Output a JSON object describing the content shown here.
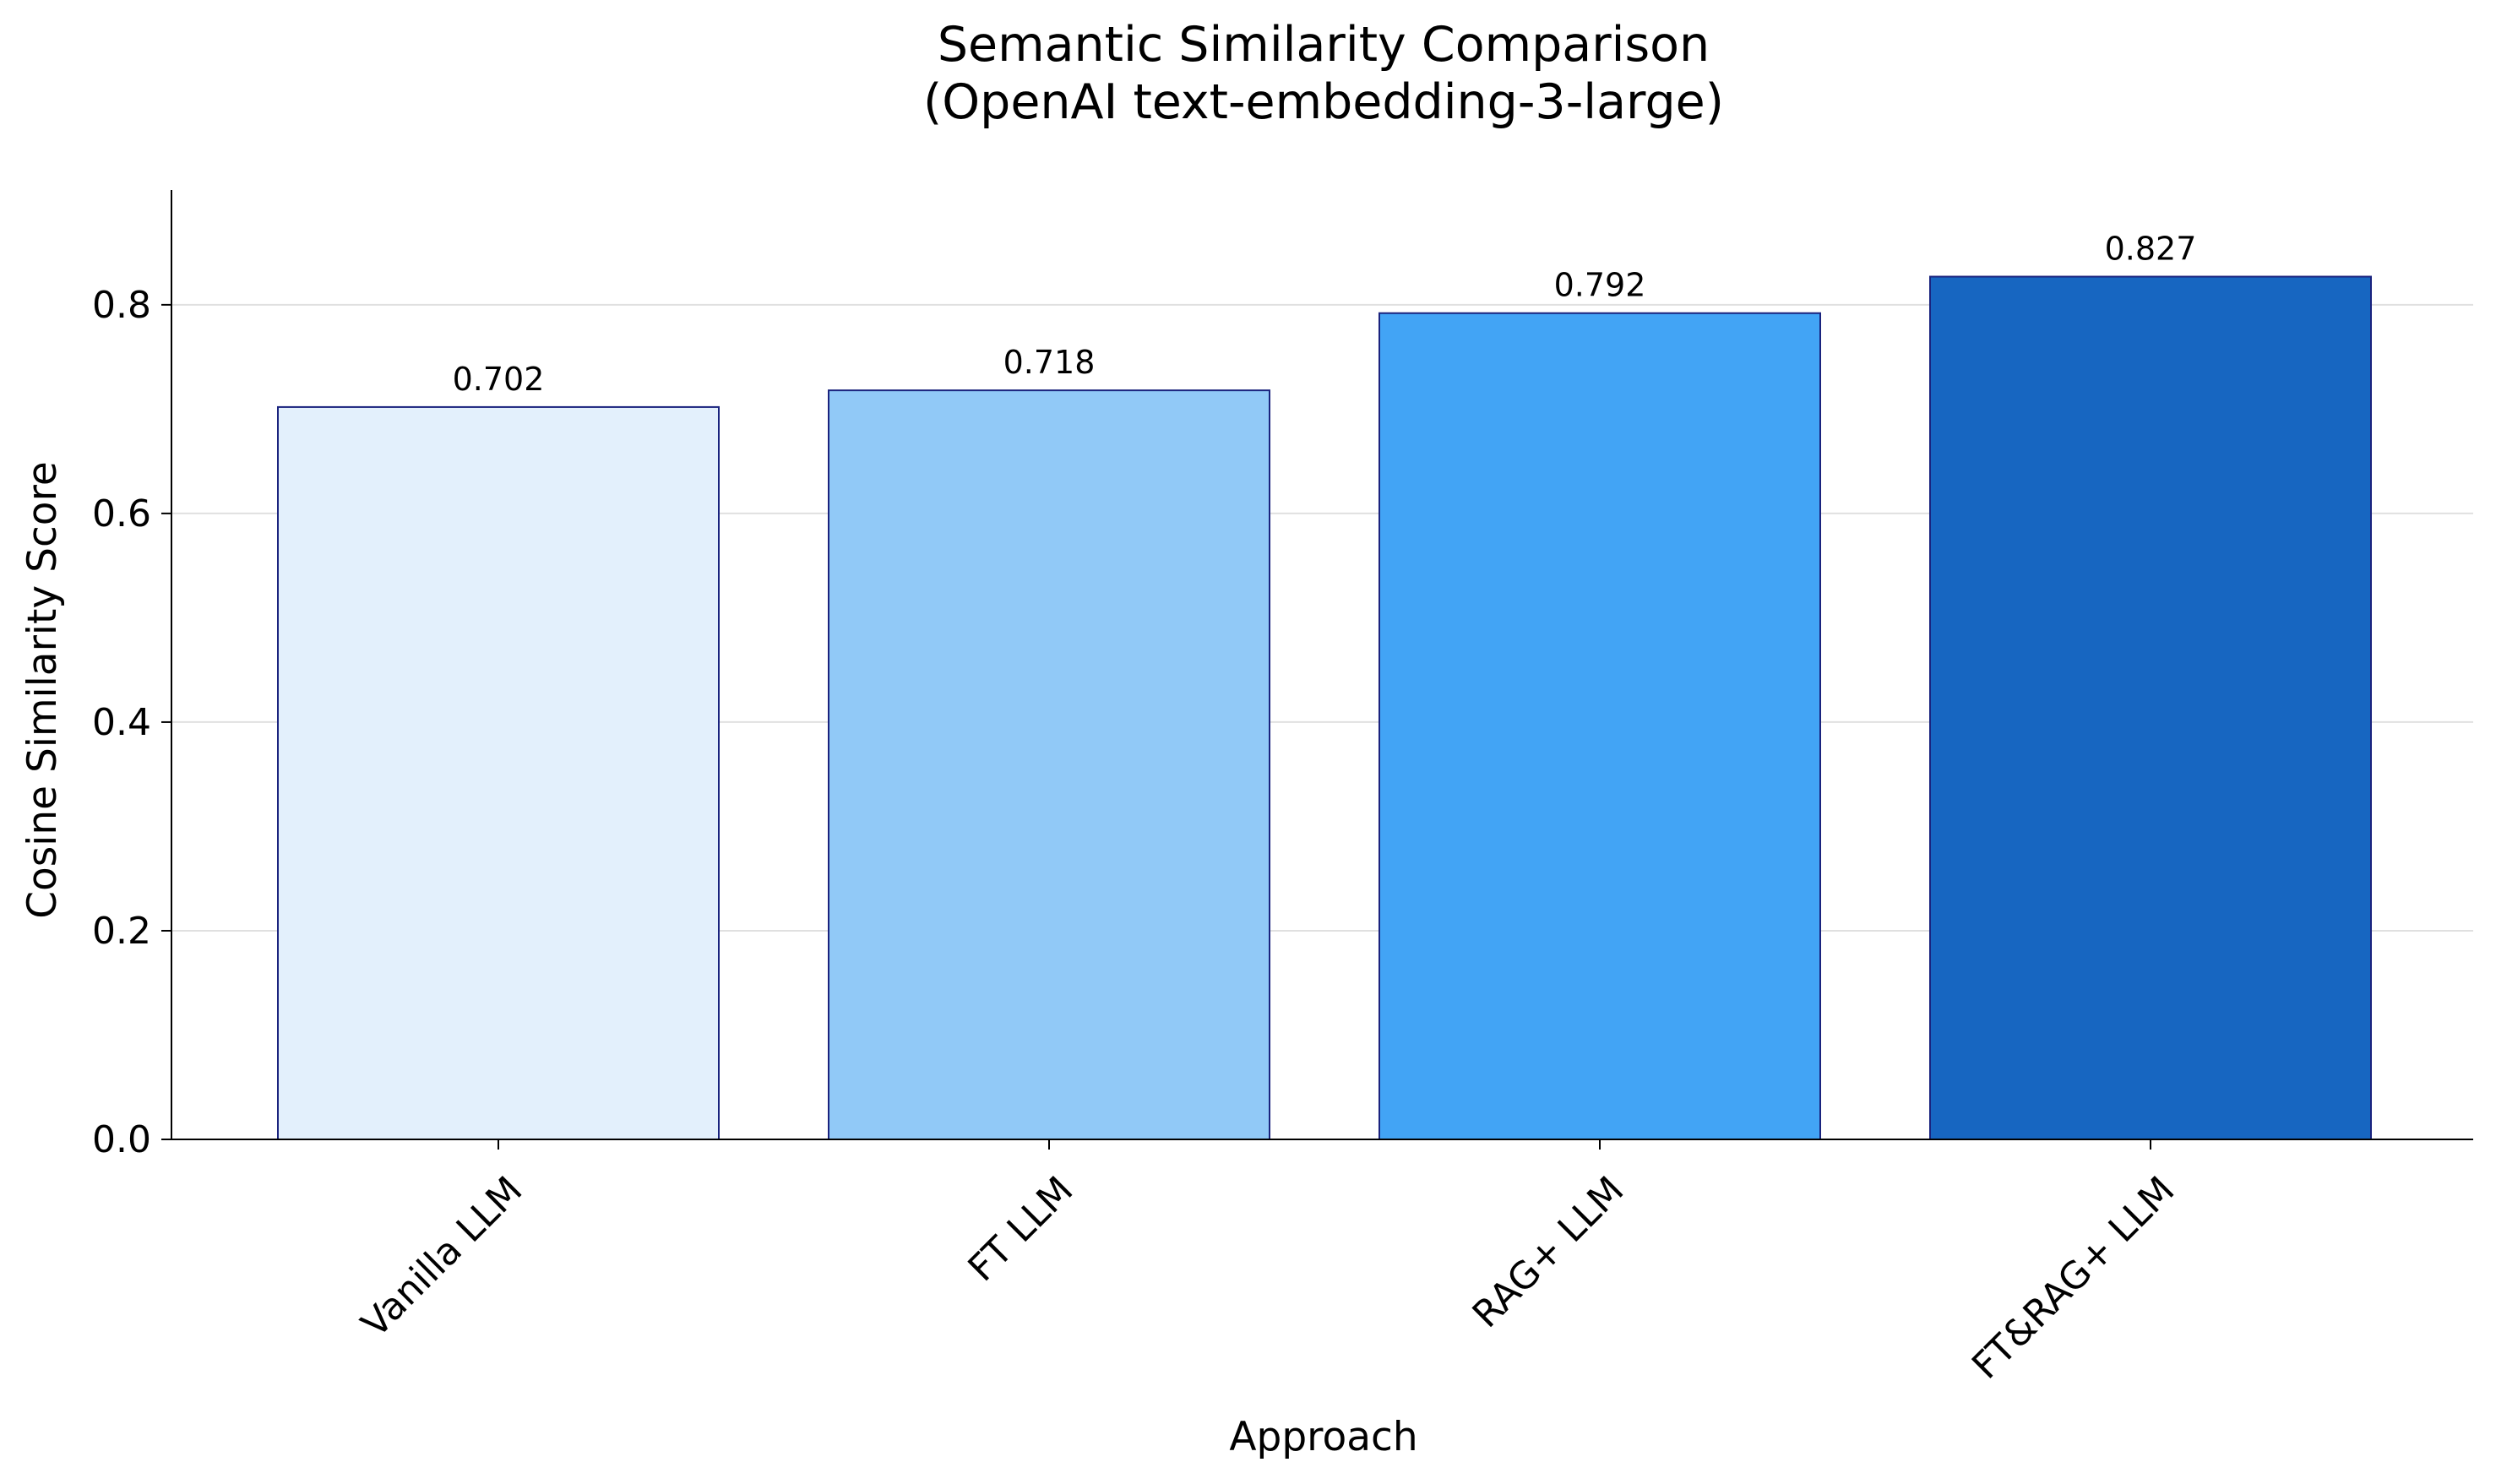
{
  "chart_data": {
    "type": "bar",
    "title_lines": [
      "Semantic Similarity Comparison",
      "(OpenAI text-embedding-3-large)"
    ],
    "xlabel": "Approach",
    "ylabel": "Cosine Similarity Score",
    "categories": [
      "Vanilla LLM",
      "FT LLM",
      "RAG+ LLM",
      "FT&RAG+ LLM"
    ],
    "values": [
      0.702,
      0.718,
      0.792,
      0.827
    ],
    "value_labels": [
      "0.702",
      "0.718",
      "0.792",
      "0.827"
    ],
    "colors": [
      "#e3f0fc",
      "#91c9f7",
      "#42a4f5",
      "#1766c1"
    ],
    "edge_color": "#1a237e",
    "ylim": [
      0,
      0.91
    ],
    "yticks": [
      0.0,
      0.2,
      0.4,
      0.6,
      0.8
    ],
    "ytick_labels": [
      "0.0",
      "0.2",
      "0.4",
      "0.6",
      "0.8"
    ],
    "grid": "horizontal",
    "grid_color": "#e0e0e0"
  }
}
